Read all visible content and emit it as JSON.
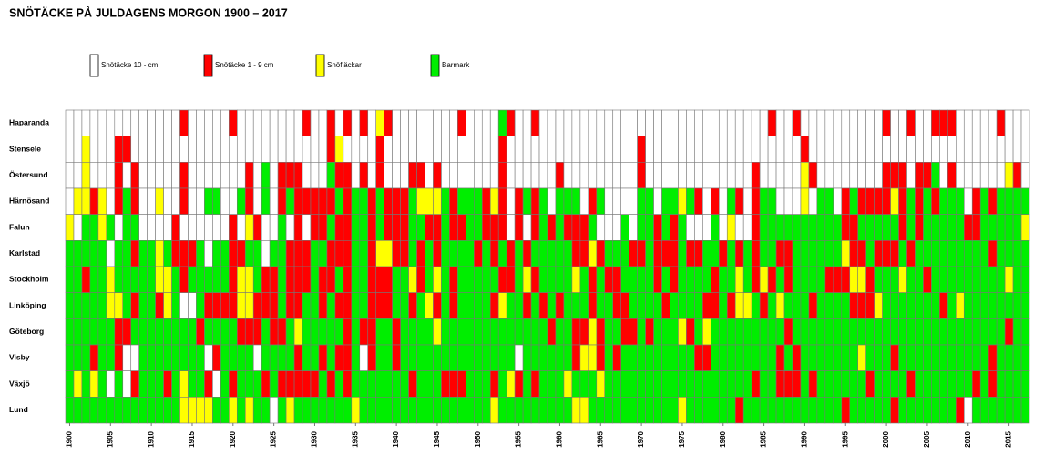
{
  "chart_data": {
    "type": "heatmap",
    "title": "SNÖTÄCKE PÅ JULDAGENS MORGON 1900 – 2017",
    "legend": [
      {
        "name": "Snötäcke 10 -  cm",
        "color": "#ffffff"
      },
      {
        "name": "Snötäcke  1 - 9 cm",
        "color": "#ff0000"
      },
      {
        "name": "Snöfläckar",
        "color": "#ffff00"
      },
      {
        "name": "Barmark",
        "color": "#00ee00"
      }
    ],
    "rows": [
      "Haparanda",
      "Stensele",
      "Östersund",
      "Härnösand",
      "Falun",
      "Karlstad",
      "Stockholm",
      "Linköping",
      "Göteborg",
      "Visby",
      "Växjö",
      "Lund"
    ],
    "xlim": [
      1900,
      2017
    ],
    "xticks": [
      1900,
      1905,
      1910,
      1915,
      1920,
      1925,
      1930,
      1935,
      1940,
      1945,
      1950,
      1955,
      1960,
      1965,
      1970,
      1975,
      1980,
      1985,
      1990,
      1995,
      2000,
      2005,
      2010,
      2015
    ],
    "values": [
      [
        0,
        0,
        0,
        0,
        0,
        0,
        0,
        0,
        0,
        0,
        0,
        0,
        0,
        0,
        1,
        0,
        0,
        0,
        0,
        0,
        1,
        0,
        0,
        0,
        0,
        0,
        0,
        0,
        0,
        1,
        0,
        0,
        1,
        0,
        1,
        0,
        1,
        0,
        2,
        1,
        0,
        0,
        0,
        0,
        0,
        0,
        0,
        0,
        1,
        0,
        0,
        0,
        0,
        3,
        1,
        0,
        0,
        1,
        0,
        0,
        0,
        0,
        0,
        0,
        0,
        0,
        0,
        0,
        0,
        0,
        0,
        0,
        0,
        0,
        0,
        0,
        0,
        0,
        0,
        0,
        0,
        0,
        0,
        0,
        0,
        0,
        1,
        0,
        0,
        1,
        0,
        0,
        0,
        0,
        0,
        0,
        0,
        0,
        0,
        0,
        1,
        0,
        0,
        1,
        0,
        0,
        1,
        1,
        1,
        0,
        0,
        0,
        0,
        0,
        1,
        0,
        0,
        0
      ],
      [
        0,
        0,
        2,
        0,
        0,
        0,
        1,
        1,
        0,
        0,
        0,
        0,
        0,
        0,
        0,
        0,
        0,
        0,
        0,
        0,
        0,
        0,
        0,
        0,
        0,
        0,
        0,
        0,
        0,
        0,
        0,
        0,
        1,
        2,
        0,
        0,
        0,
        0,
        1,
        0,
        0,
        0,
        0,
        0,
        0,
        0,
        0,
        0,
        0,
        0,
        0,
        0,
        0,
        1,
        0,
        0,
        0,
        0,
        0,
        0,
        0,
        0,
        0,
        0,
        0,
        0,
        0,
        0,
        0,
        0,
        1,
        0,
        0,
        0,
        0,
        0,
        0,
        0,
        0,
        0,
        0,
        0,
        0,
        0,
        0,
        0,
        0,
        0,
        0,
        0,
        1,
        0,
        0,
        0,
        0,
        0,
        0,
        0,
        0,
        0,
        0,
        0,
        0,
        0,
        0,
        0,
        0,
        0,
        0,
        0,
        0,
        0,
        0,
        0,
        0,
        0,
        0,
        0
      ],
      [
        0,
        0,
        2,
        0,
        0,
        0,
        1,
        0,
        1,
        0,
        0,
        0,
        0,
        0,
        1,
        0,
        0,
        0,
        0,
        0,
        0,
        0,
        1,
        0,
        3,
        0,
        1,
        1,
        1,
        0,
        0,
        0,
        3,
        1,
        1,
        0,
        1,
        0,
        1,
        0,
        0,
        0,
        1,
        1,
        0,
        1,
        0,
        0,
        0,
        0,
        0,
        0,
        0,
        1,
        0,
        0,
        0,
        0,
        0,
        0,
        1,
        0,
        0,
        0,
        0,
        0,
        0,
        0,
        0,
        0,
        1,
        0,
        0,
        0,
        0,
        0,
        0,
        0,
        0,
        0,
        0,
        0,
        0,
        0,
        1,
        0,
        0,
        0,
        0,
        0,
        2,
        1,
        0,
        0,
        0,
        0,
        0,
        0,
        0,
        0,
        1,
        1,
        1,
        0,
        1,
        1,
        3,
        0,
        1,
        0,
        0,
        0,
        0,
        0,
        0,
        2,
        1,
        0
      ],
      [
        0,
        2,
        2,
        1,
        2,
        0,
        1,
        3,
        1,
        0,
        0,
        2,
        0,
        0,
        1,
        0,
        0,
        3,
        3,
        0,
        0,
        3,
        1,
        0,
        3,
        0,
        1,
        3,
        1,
        1,
        1,
        1,
        1,
        3,
        1,
        3,
        3,
        1,
        3,
        1,
        1,
        1,
        3,
        2,
        2,
        2,
        3,
        1,
        3,
        3,
        3,
        1,
        2,
        1,
        0,
        1,
        3,
        1,
        3,
        0,
        3,
        3,
        3,
        0,
        1,
        3,
        0,
        0,
        0,
        0,
        3,
        3,
        0,
        3,
        3,
        2,
        3,
        1,
        0,
        1,
        0,
        3,
        1,
        0,
        1,
        3,
        3,
        0,
        0,
        0,
        2,
        0,
        3,
        3,
        0,
        1,
        3,
        1,
        1,
        1,
        1,
        2,
        1,
        3,
        1,
        3,
        1,
        3,
        3,
        3,
        0,
        1,
        3,
        1,
        3,
        3,
        3,
        3
      ],
      [
        2,
        0,
        3,
        3,
        2,
        3,
        0,
        3,
        3,
        0,
        0,
        0,
        0,
        1,
        0,
        0,
        0,
        0,
        0,
        0,
        1,
        0,
        2,
        1,
        0,
        0,
        3,
        0,
        1,
        0,
        1,
        1,
        3,
        1,
        1,
        3,
        3,
        1,
        3,
        1,
        1,
        1,
        3,
        3,
        1,
        1,
        3,
        1,
        1,
        3,
        3,
        1,
        1,
        1,
        0,
        1,
        0,
        1,
        3,
        1,
        3,
        1,
        1,
        1,
        3,
        0,
        0,
        0,
        3,
        0,
        3,
        3,
        1,
        3,
        1,
        3,
        0,
        0,
        0,
        3,
        0,
        2,
        0,
        0,
        1,
        3,
        3,
        3,
        3,
        3,
        3,
        3,
        3,
        3,
        3,
        1,
        1,
        3,
        3,
        3,
        3,
        3,
        1,
        3,
        1,
        3,
        3,
        3,
        3,
        3,
        1,
        1,
        3,
        3,
        3,
        3,
        3,
        2
      ],
      [
        3,
        3,
        3,
        3,
        3,
        0,
        3,
        3,
        1,
        3,
        3,
        2,
        3,
        1,
        1,
        1,
        3,
        0,
        3,
        3,
        1,
        1,
        3,
        3,
        0,
        3,
        3,
        1,
        1,
        1,
        3,
        3,
        1,
        1,
        1,
        3,
        3,
        1,
        2,
        2,
        1,
        1,
        3,
        1,
        3,
        1,
        3,
        3,
        3,
        3,
        1,
        3,
        1,
        3,
        1,
        3,
        1,
        3,
        3,
        3,
        3,
        3,
        1,
        1,
        2,
        1,
        3,
        3,
        3,
        1,
        1,
        3,
        1,
        1,
        1,
        3,
        1,
        1,
        3,
        3,
        1,
        3,
        1,
        3,
        1,
        3,
        3,
        1,
        1,
        3,
        3,
        3,
        3,
        3,
        3,
        2,
        1,
        1,
        3,
        1,
        1,
        1,
        3,
        1,
        3,
        3,
        3,
        3,
        3,
        3,
        3,
        3,
        3,
        1,
        3,
        3,
        3,
        3
      ],
      [
        3,
        3,
        1,
        3,
        3,
        2,
        3,
        3,
        3,
        3,
        3,
        2,
        2,
        3,
        1,
        3,
        3,
        3,
        3,
        3,
        1,
        2,
        2,
        3,
        1,
        1,
        3,
        1,
        1,
        1,
        3,
        1,
        1,
        3,
        1,
        3,
        3,
        1,
        1,
        1,
        3,
        3,
        2,
        1,
        3,
        2,
        3,
        1,
        3,
        3,
        3,
        3,
        3,
        1,
        1,
        3,
        2,
        1,
        3,
        3,
        3,
        3,
        2,
        3,
        1,
        3,
        1,
        1,
        3,
        3,
        3,
        3,
        1,
        3,
        1,
        3,
        3,
        3,
        3,
        1,
        3,
        3,
        2,
        3,
        1,
        2,
        1,
        3,
        1,
        3,
        3,
        3,
        3,
        1,
        1,
        1,
        2,
        2,
        1,
        3,
        3,
        3,
        2,
        3,
        3,
        1,
        3,
        3,
        3,
        3,
        3,
        3,
        3,
        3,
        3,
        2,
        3,
        3
      ],
      [
        3,
        3,
        3,
        3,
        3,
        2,
        2,
        3,
        1,
        3,
        3,
        1,
        2,
        3,
        0,
        0,
        3,
        1,
        1,
        1,
        1,
        2,
        2,
        1,
        1,
        1,
        3,
        1,
        1,
        3,
        3,
        1,
        3,
        1,
        1,
        3,
        3,
        1,
        1,
        1,
        3,
        3,
        1,
        3,
        2,
        1,
        3,
        1,
        3,
        3,
        3,
        3,
        1,
        2,
        3,
        3,
        1,
        3,
        1,
        3,
        1,
        3,
        3,
        3,
        1,
        3,
        3,
        1,
        1,
        3,
        3,
        3,
        3,
        1,
        3,
        3,
        3,
        3,
        1,
        1,
        3,
        1,
        2,
        2,
        3,
        1,
        3,
        2,
        3,
        3,
        3,
        1,
        3,
        3,
        3,
        3,
        1,
        1,
        1,
        2,
        3,
        3,
        3,
        3,
        3,
        3,
        3,
        1,
        3,
        2,
        3,
        3,
        3,
        3,
        3,
        3,
        3,
        3
      ],
      [
        3,
        3,
        3,
        3,
        3,
        3,
        1,
        1,
        3,
        3,
        3,
        3,
        3,
        3,
        3,
        3,
        1,
        3,
        3,
        3,
        3,
        1,
        1,
        1,
        3,
        1,
        1,
        3,
        2,
        3,
        3,
        3,
        3,
        3,
        1,
        3,
        1,
        1,
        3,
        3,
        1,
        3,
        3,
        3,
        3,
        2,
        3,
        3,
        3,
        3,
        3,
        3,
        3,
        3,
        3,
        3,
        3,
        3,
        3,
        1,
        3,
        3,
        1,
        1,
        2,
        1,
        3,
        3,
        1,
        1,
        3,
        1,
        3,
        3,
        3,
        2,
        1,
        3,
        2,
        3,
        3,
        3,
        3,
        3,
        3,
        3,
        3,
        3,
        1,
        3,
        3,
        3,
        3,
        3,
        3,
        3,
        3,
        3,
        3,
        3,
        3,
        3,
        3,
        3,
        3,
        3,
        3,
        3,
        3,
        3,
        3,
        3,
        3,
        3,
        3,
        1,
        3,
        3
      ],
      [
        3,
        3,
        3,
        1,
        3,
        3,
        1,
        0,
        0,
        3,
        3,
        3,
        3,
        3,
        3,
        3,
        3,
        0,
        1,
        3,
        3,
        3,
        3,
        0,
        3,
        3,
        3,
        3,
        1,
        3,
        3,
        1,
        3,
        1,
        1,
        3,
        0,
        1,
        3,
        3,
        1,
        3,
        3,
        3,
        3,
        3,
        3,
        3,
        3,
        3,
        3,
        3,
        3,
        3,
        3,
        0,
        3,
        3,
        3,
        3,
        3,
        3,
        1,
        2,
        2,
        1,
        3,
        1,
        3,
        3,
        3,
        3,
        3,
        3,
        3,
        3,
        3,
        1,
        1,
        3,
        3,
        3,
        3,
        3,
        3,
        3,
        3,
        1,
        3,
        1,
        3,
        3,
        3,
        3,
        3,
        3,
        3,
        2,
        3,
        3,
        3,
        1,
        3,
        3,
        3,
        3,
        3,
        3,
        3,
        3,
        3,
        3,
        3,
        1,
        3,
        3,
        3,
        3
      ],
      [
        3,
        2,
        3,
        2,
        3,
        0,
        3,
        0,
        1,
        3,
        3,
        3,
        1,
        3,
        2,
        3,
        3,
        1,
        0,
        3,
        1,
        3,
        3,
        3,
        1,
        3,
        1,
        1,
        1,
        1,
        1,
        3,
        1,
        3,
        1,
        3,
        3,
        3,
        3,
        3,
        3,
        3,
        1,
        3,
        3,
        3,
        1,
        1,
        1,
        3,
        3,
        3,
        1,
        3,
        2,
        1,
        3,
        1,
        3,
        3,
        3,
        2,
        3,
        3,
        3,
        2,
        3,
        3,
        3,
        3,
        3,
        3,
        3,
        3,
        3,
        3,
        3,
        3,
        3,
        3,
        3,
        3,
        3,
        3,
        1,
        3,
        3,
        1,
        1,
        1,
        3,
        1,
        3,
        3,
        3,
        3,
        3,
        3,
        1,
        3,
        3,
        3,
        3,
        1,
        3,
        3,
        3,
        3,
        3,
        3,
        3,
        1,
        3,
        1,
        3,
        3,
        3,
        3
      ],
      [
        3,
        3,
        3,
        3,
        3,
        3,
        3,
        3,
        3,
        3,
        3,
        3,
        3,
        3,
        2,
        2,
        2,
        2,
        3,
        3,
        2,
        3,
        2,
        3,
        3,
        0,
        3,
        2,
        3,
        3,
        3,
        3,
        3,
        3,
        3,
        2,
        3,
        3,
        3,
        3,
        3,
        3,
        3,
        3,
        3,
        3,
        3,
        3,
        3,
        3,
        3,
        3,
        2,
        3,
        3,
        3,
        3,
        3,
        3,
        3,
        3,
        3,
        2,
        2,
        3,
        3,
        3,
        3,
        3,
        3,
        3,
        3,
        3,
        3,
        3,
        2,
        3,
        3,
        3,
        3,
        3,
        3,
        1,
        3,
        3,
        3,
        3,
        3,
        3,
        3,
        3,
        3,
        3,
        3,
        3,
        1,
        3,
        3,
        3,
        3,
        3,
        1,
        3,
        3,
        3,
        3,
        3,
        3,
        3,
        1,
        0,
        3,
        3,
        3,
        3,
        3,
        3,
        3
      ]
    ]
  }
}
